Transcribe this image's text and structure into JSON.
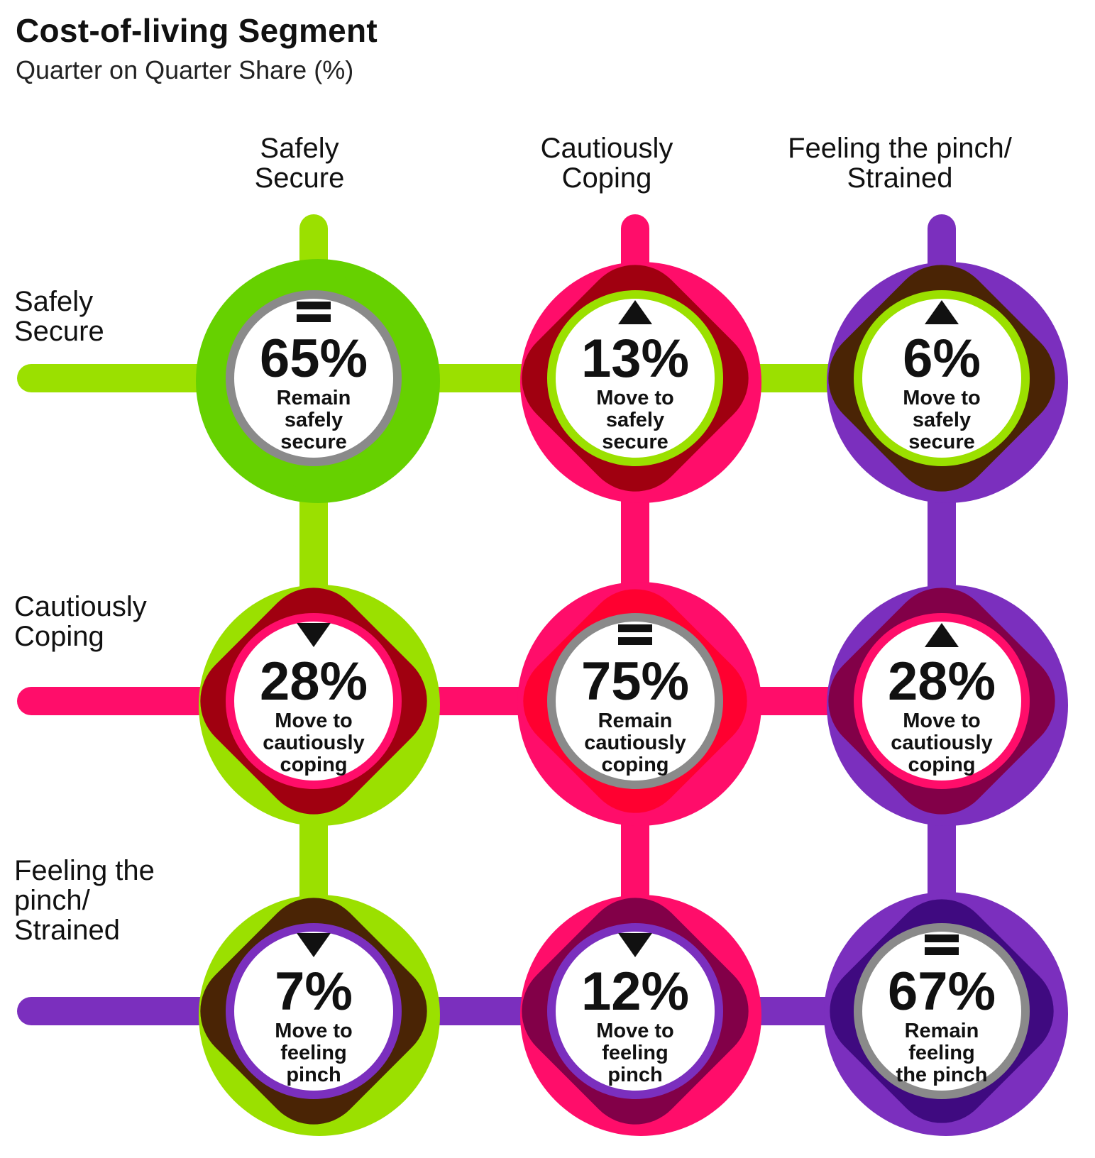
{
  "header": {
    "title": "Cost-of-living Segment",
    "subtitle": "Quarter on Quarter Share (%)"
  },
  "columns": [
    {
      "lines": [
        "Safely",
        "Secure"
      ]
    },
    {
      "lines": [
        "Cautiously",
        "Coping"
      ]
    },
    {
      "lines": [
        "Feeling the pinch/",
        "Strained"
      ]
    }
  ],
  "rows": [
    {
      "lines": [
        "Safely",
        "Secure"
      ]
    },
    {
      "lines": [
        "Cautiously",
        "Coping"
      ]
    },
    {
      "lines": [
        "Feeling the",
        "pinch/",
        "Strained"
      ]
    }
  ],
  "colors": {
    "safely_secure": "#9be000",
    "safely_secure_dark": "#66d100",
    "cautiously_coping": "#ff0d6a",
    "feeling_pinch": "#7b2fbe",
    "feeling_pinch_dark": "#3f0a80",
    "blend_green_pink": "#a00010",
    "blend_green_purple": "#4a2405",
    "blend_pink_purple": "#820048",
    "ring_grey": "#8a8a8a"
  },
  "cells": [
    {
      "row": 0,
      "col": 0,
      "value": "65%",
      "arrow": "equal",
      "label": [
        "Remain",
        "safely",
        "secure"
      ]
    },
    {
      "row": 0,
      "col": 1,
      "value": "13%",
      "arrow": "up",
      "label": [
        "Move to",
        "safely",
        "secure"
      ]
    },
    {
      "row": 0,
      "col": 2,
      "value": "6%",
      "arrow": "up",
      "label": [
        "Move to",
        "safely",
        "secure"
      ]
    },
    {
      "row": 1,
      "col": 0,
      "value": "28%",
      "arrow": "down",
      "label": [
        "Move to",
        "cautiously",
        "coping"
      ]
    },
    {
      "row": 1,
      "col": 1,
      "value": "75%",
      "arrow": "equal",
      "label": [
        "Remain",
        "cautiously",
        "coping"
      ]
    },
    {
      "row": 1,
      "col": 2,
      "value": "28%",
      "arrow": "up",
      "label": [
        "Move to",
        "cautiously",
        "coping"
      ]
    },
    {
      "row": 2,
      "col": 0,
      "value": "7%",
      "arrow": "down",
      "label": [
        "Move to",
        "feeling",
        "pinch"
      ]
    },
    {
      "row": 2,
      "col": 1,
      "value": "12%",
      "arrow": "down",
      "label": [
        "Move to",
        "feeling",
        "pinch"
      ]
    },
    {
      "row": 2,
      "col": 2,
      "value": "67%",
      "arrow": "equal",
      "label": [
        "Remain",
        "feeling",
        "the pinch"
      ]
    }
  ]
}
